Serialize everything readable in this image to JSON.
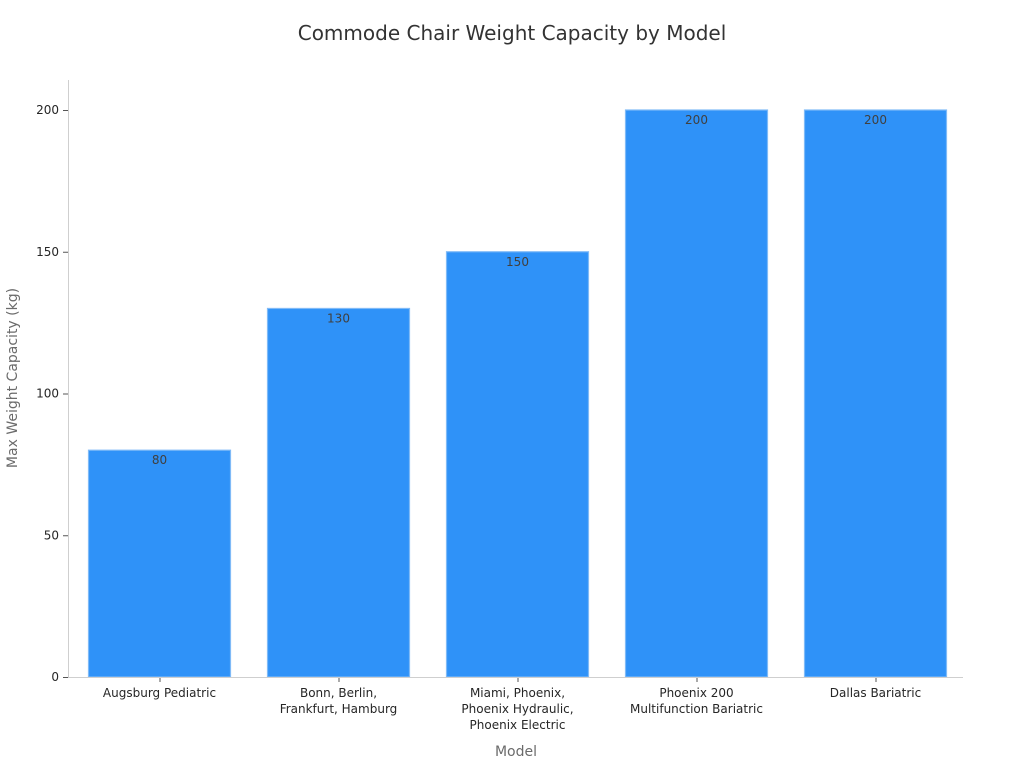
{
  "chart_data": {
    "type": "bar",
    "title": "Commode Chair Weight Capacity by Model",
    "xlabel": "Model",
    "ylabel": "Max Weight Capacity (kg)",
    "categories": [
      [
        "Augsburg Pediatric"
      ],
      [
        "Bonn, Berlin,",
        "Frankfurt, Hamburg"
      ],
      [
        "Miami, Phoenix,",
        "Phoenix Hydraulic,",
        "Phoenix Electric"
      ],
      [
        "Phoenix 200",
        "Multifunction Bariatric"
      ],
      [
        "Dallas Bariatric"
      ]
    ],
    "values": [
      80,
      130,
      150,
      200,
      200
    ],
    "ylim": [
      0,
      210
    ],
    "yticks": [
      0,
      50,
      100,
      150,
      200
    ],
    "grid": false,
    "legend": "none",
    "colors": {
      "bar_fill": "#2f92f8",
      "bar_edge": "#7fbaf7"
    }
  }
}
